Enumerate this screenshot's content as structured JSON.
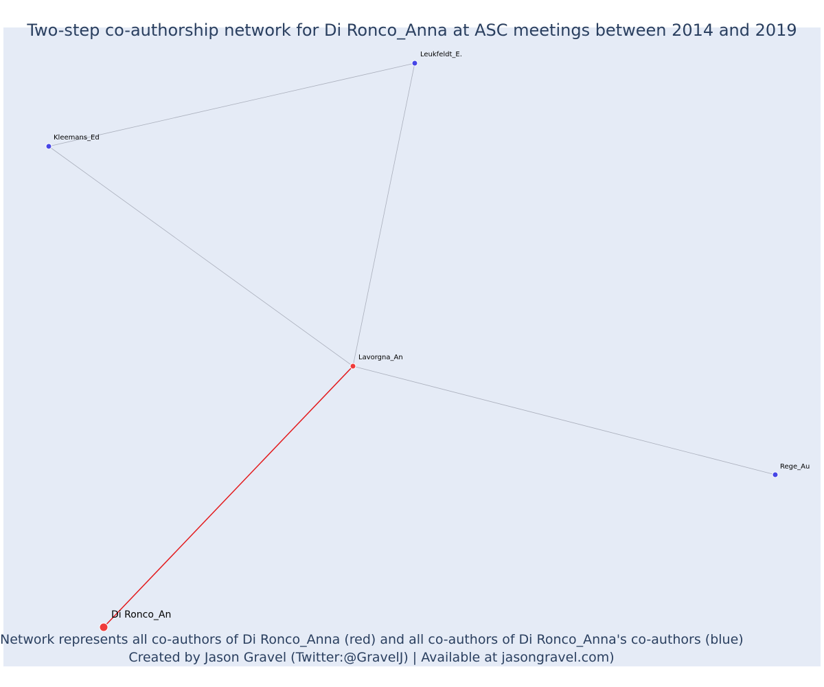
{
  "chart_data": {
    "type": "network",
    "title": "Two-step co-authorship network for Di Ronco_Anna at ASC meetings between 2014 and 2019",
    "annotation": {
      "line1": "Network represents all co-authors of Di Ronco_Anna (red) and all co-authors of Di Ronco_Anna's co-authors (blue)",
      "line2": "Created by Jason Gravel (Twitter:@GravelJ) | Available at jasongravel.com)"
    },
    "colors": {
      "focal": "#ef3b3b",
      "direct_coauthor": "#ef3b3b",
      "second_step": "#4646e6",
      "focal_edge": "#e31a1c",
      "edge": "#a9aebb",
      "background": "#e5ebf6"
    },
    "nodes": [
      {
        "id": "Di Ronco_An",
        "label": "Di Ronco_An",
        "group": "focal"
      },
      {
        "id": "Lavorgna_An",
        "label": "Lavorgna_An",
        "group": "direct_coauthor"
      },
      {
        "id": "Leukfeldt_E.",
        "label": "Leukfeldt_E.",
        "group": "second_step"
      },
      {
        "id": "Kleemans_Ed",
        "label": "Kleemans_Ed",
        "group": "second_step"
      },
      {
        "id": "Rege_Au",
        "label": "Rege_Au",
        "group": "second_step"
      }
    ],
    "edges": [
      {
        "source": "Di Ronco_An",
        "target": "Lavorgna_An",
        "focal": true
      },
      {
        "source": "Lavorgna_An",
        "target": "Leukfeldt_E.",
        "focal": false
      },
      {
        "source": "Lavorgna_An",
        "target": "Kleemans_Ed",
        "focal": false
      },
      {
        "source": "Lavorgna_An",
        "target": "Rege_Au",
        "focal": false
      },
      {
        "source": "Kleemans_Ed",
        "target": "Leukfeldt_E.",
        "focal": false
      }
    ]
  }
}
